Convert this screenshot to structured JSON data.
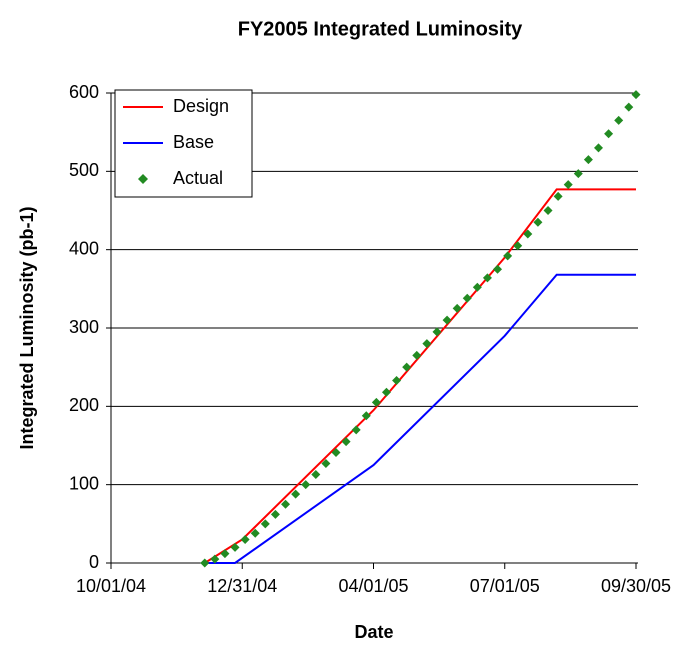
{
  "chart_data": {
    "type": "line",
    "title": "FY2005 Integrated Luminosity",
    "x_label": "Date",
    "y_label": "Integrated Luminosity (pb-1)",
    "xlim": [
      "2004-10-01",
      "2005-09-30"
    ],
    "xticks": [
      {
        "value": "2004-10-01",
        "label": "10/01/04"
      },
      {
        "value": "2004-12-31",
        "label": "12/31/04"
      },
      {
        "value": "2005-04-01",
        "label": "04/01/05"
      },
      {
        "value": "2005-07-01",
        "label": "07/01/05"
      },
      {
        "value": "2005-09-30",
        "label": "09/30/05"
      }
    ],
    "ylim": [
      0,
      600
    ],
    "yticks": [
      0,
      100,
      200,
      300,
      400,
      500,
      600
    ],
    "grid": true,
    "legend": "upper left",
    "series": [
      {
        "name": "Design",
        "color": "#ff0000",
        "mode": "lines",
        "x": [
          "2004-12-05",
          "2004-12-31",
          "2005-04-01",
          "2005-07-01",
          "2005-08-06",
          "2005-09-30"
        ],
        "values": [
          0,
          30,
          195,
          390,
          477,
          477
        ]
      },
      {
        "name": "Base",
        "color": "#0000ff",
        "mode": "lines",
        "x": [
          "2004-12-05",
          "2004-12-26",
          "2005-04-01",
          "2005-07-01",
          "2005-08-06",
          "2005-09-30"
        ],
        "values": [
          0,
          0,
          125,
          290,
          368,
          368
        ]
      },
      {
        "name": "Actual",
        "color": "#228b22",
        "mode": "markers",
        "x": [
          "2004-12-05",
          "2004-12-12",
          "2004-12-19",
          "2004-12-26",
          "2005-01-02",
          "2005-01-09",
          "2005-01-16",
          "2005-01-23",
          "2005-01-30",
          "2005-02-06",
          "2005-02-13",
          "2005-02-20",
          "2005-02-27",
          "2005-03-06",
          "2005-03-13",
          "2005-03-20",
          "2005-03-27",
          "2005-04-03",
          "2005-04-10",
          "2005-04-17",
          "2005-04-24",
          "2005-05-01",
          "2005-05-08",
          "2005-05-15",
          "2005-05-22",
          "2005-05-29",
          "2005-06-05",
          "2005-06-12",
          "2005-06-19",
          "2005-06-26",
          "2005-07-03",
          "2005-07-10",
          "2005-07-17",
          "2005-07-24",
          "2005-07-31",
          "2005-08-07",
          "2005-08-14",
          "2005-08-21",
          "2005-08-28",
          "2005-09-04",
          "2005-09-11",
          "2005-09-18",
          "2005-09-25",
          "2005-09-30"
        ],
        "values": [
          0,
          5,
          12,
          20,
          30,
          38,
          50,
          62,
          75,
          88,
          100,
          113,
          127,
          141,
          155,
          170,
          188,
          205,
          218,
          233,
          250,
          265,
          280,
          295,
          310,
          325,
          338,
          352,
          364,
          375,
          392,
          405,
          420,
          435,
          450,
          468,
          483,
          497,
          515,
          530,
          548,
          565,
          582,
          598
        ]
      }
    ]
  }
}
